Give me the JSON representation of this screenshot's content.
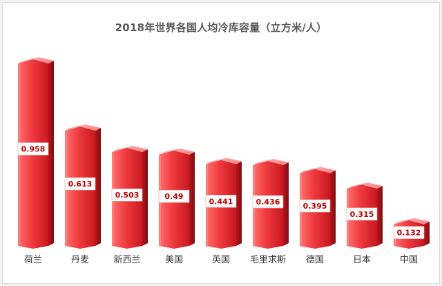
{
  "chart_data": {
    "type": "bar",
    "title": "2018年世界各国人均冷库容量（立方米/人）",
    "categories": [
      "荷兰",
      "丹麦",
      "新西兰",
      "美国",
      "英国",
      "毛里求斯",
      "德国",
      "日本",
      "中国"
    ],
    "values": [
      0.958,
      0.613,
      0.503,
      0.49,
      0.441,
      0.436,
      0.395,
      0.315,
      0.132
    ],
    "value_labels": [
      "0.958",
      "0.613",
      "0.503",
      "0.49",
      "0.441",
      "0.436",
      "0.395",
      "0.315",
      "0.132"
    ],
    "xlabel": "",
    "ylabel": "",
    "ylim": [
      0,
      1
    ],
    "grid": false,
    "legend": "none",
    "colors": {
      "bar_light": "#ff6b6b",
      "bar_main": "#e0262f",
      "bar_dark": "#9e1118",
      "bar_top": "#ff8a8a",
      "label_bg": "#ffffff",
      "label_text": "#c00000",
      "axis_text": "#333333",
      "title_text": "#595959"
    }
  }
}
